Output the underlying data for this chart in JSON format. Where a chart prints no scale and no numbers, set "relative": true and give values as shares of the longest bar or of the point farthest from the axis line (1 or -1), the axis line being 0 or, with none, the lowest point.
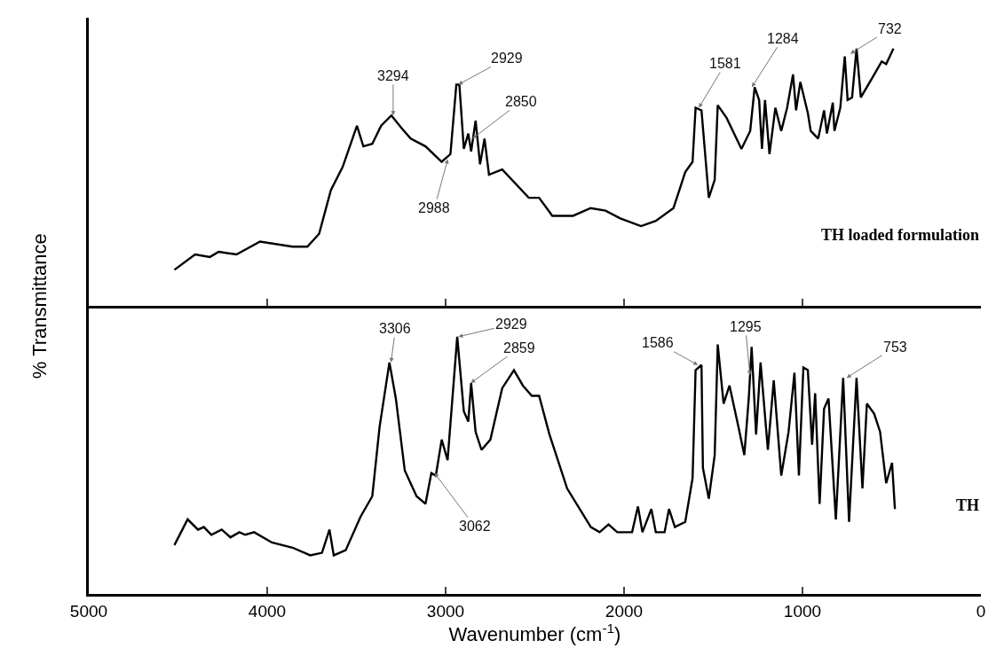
{
  "chart_data": [
    {
      "type": "line",
      "relative": true,
      "xlim": [
        5000,
        0
      ],
      "xticks": [
        5000,
        4000,
        3000,
        2000,
        1000,
        0
      ],
      "tick_labels": false,
      "ylabel": "% Transmittance",
      "series": [
        {
          "name": "TH loaded formulation",
          "color": "#000000",
          "x": [
            4520,
            4404,
            4321,
            4272,
            4172,
            4040,
            3858,
            3775,
            3709,
            3643,
            3577,
            3497,
            3461,
            3411,
            3362,
            3304,
            3246,
            3196,
            3113,
            3022,
            2973,
            2940,
            2923,
            2898,
            2873,
            2857,
            2832,
            2807,
            2782,
            2757,
            2683,
            2534,
            2476,
            2402,
            2286,
            2187,
            2104,
            2021,
            1905,
            1822,
            1723,
            1657,
            1616,
            1599,
            1566,
            1525,
            1492,
            1475,
            1425,
            1342,
            1293,
            1268,
            1243,
            1227,
            1210,
            1185,
            1152,
            1119,
            1086,
            1053,
            1036,
            1012,
            970,
            954,
            912,
            879,
            863,
            830,
            821,
            788,
            763,
            747,
            722,
            697,
            673,
            614,
            556,
            531,
            490
          ],
          "values": [
            0.14,
            0.2,
            0.19,
            0.21,
            0.2,
            0.25,
            0.23,
            0.23,
            0.28,
            0.45,
            0.54,
            0.7,
            0.62,
            0.63,
            0.7,
            0.74,
            0.69,
            0.65,
            0.62,
            0.56,
            0.59,
            0.86,
            0.86,
            0.61,
            0.67,
            0.6,
            0.72,
            0.55,
            0.65,
            0.51,
            0.53,
            0.42,
            0.42,
            0.35,
            0.35,
            0.38,
            0.37,
            0.34,
            0.31,
            0.33,
            0.38,
            0.52,
            0.56,
            0.77,
            0.76,
            0.42,
            0.49,
            0.78,
            0.73,
            0.61,
            0.68,
            0.85,
            0.8,
            0.61,
            0.8,
            0.59,
            0.77,
            0.68,
            0.77,
            0.9,
            0.76,
            0.87,
            0.75,
            0.68,
            0.65,
            0.76,
            0.67,
            0.79,
            0.68,
            0.77,
            0.97,
            0.8,
            0.81,
            1.0,
            0.81,
            0.88,
            0.95,
            0.94,
            1.0
          ]
        }
      ],
      "annotations": [
        {
          "text": "3294",
          "x": 3294,
          "y": 0.74
        },
        {
          "text": "2929",
          "x": 2929,
          "y": 0.86
        },
        {
          "text": "2850",
          "x": 2850,
          "y": 0.65
        },
        {
          "text": "2988",
          "x": 2988,
          "y": 0.57
        },
        {
          "text": "1581",
          "x": 1581,
          "y": 0.77
        },
        {
          "text": "1284",
          "x": 1284,
          "y": 0.85
        },
        {
          "text": "732",
          "x": 732,
          "y": 0.98
        }
      ]
    },
    {
      "type": "line",
      "relative": true,
      "xlim": [
        5000,
        0
      ],
      "xticks": [
        5000,
        4000,
        3000,
        2000,
        1000,
        0
      ],
      "tick_labels": "x",
      "xlabel": "Wavenumber (cm$^{-1}$)",
      "series": [
        {
          "name": "TH",
          "color": "#000000",
          "x": [
            4520,
            4446,
            4388,
            4355,
            4313,
            4255,
            4206,
            4156,
            4123,
            4073,
            3974,
            3858,
            3759,
            3693,
            3651,
            3627,
            3560,
            3477,
            3411,
            3370,
            3315,
            3279,
            3229,
            3163,
            3113,
            3080,
            3055,
            3022,
            2989,
            2935,
            2898,
            2873,
            2857,
            2832,
            2799,
            2749,
            2683,
            2617,
            2567,
            2517,
            2476,
            2418,
            2319,
            2186,
            2137,
            2087,
            2038,
            1955,
            1922,
            1897,
            1847,
            1822,
            1773,
            1748,
            1715,
            1657,
            1616,
            1599,
            1566,
            1558,
            1525,
            1492,
            1475,
            1442,
            1409,
            1359,
            1326,
            1301,
            1285,
            1260,
            1235,
            1194,
            1161,
            1119,
            1078,
            1045,
            1020,
            995,
            970,
            946,
            929,
            904,
            879,
            854,
            813,
            772,
            739,
            697,
            664,
            639,
            598,
            565,
            531,
            498,
            482
          ],
          "values": [
            0.19,
            0.29,
            0.25,
            0.26,
            0.23,
            0.25,
            0.22,
            0.24,
            0.23,
            0.24,
            0.2,
            0.18,
            0.15,
            0.16,
            0.25,
            0.15,
            0.17,
            0.3,
            0.38,
            0.65,
            0.9,
            0.76,
            0.48,
            0.38,
            0.35,
            0.47,
            0.46,
            0.6,
            0.52,
            1.0,
            0.71,
            0.67,
            0.82,
            0.63,
            0.56,
            0.6,
            0.8,
            0.87,
            0.81,
            0.77,
            0.77,
            0.62,
            0.41,
            0.26,
            0.24,
            0.27,
            0.24,
            0.24,
            0.34,
            0.24,
            0.33,
            0.24,
            0.24,
            0.33,
            0.26,
            0.28,
            0.45,
            0.87,
            0.89,
            0.49,
            0.37,
            0.54,
            0.97,
            0.74,
            0.81,
            0.65,
            0.54,
            0.76,
            0.96,
            0.62,
            0.9,
            0.56,
            0.83,
            0.46,
            0.63,
            0.86,
            0.46,
            0.88,
            0.87,
            0.58,
            0.78,
            0.35,
            0.72,
            0.76,
            0.29,
            0.84,
            0.28,
            0.84,
            0.41,
            0.74,
            0.7,
            0.63,
            0.43,
            0.51,
            0.33
          ]
        }
      ],
      "annotations": [
        {
          "text": "3306",
          "x": 3306,
          "y": 0.9
        },
        {
          "text": "2929",
          "x": 2929,
          "y": 1.0
        },
        {
          "text": "2859",
          "x": 2859,
          "y": 0.82
        },
        {
          "text": "3062",
          "x": 3062,
          "y": 0.47
        },
        {
          "text": "1586",
          "x": 1586,
          "y": 0.89
        },
        {
          "text": "1295",
          "x": 1295,
          "y": 0.85
        },
        {
          "text": "753",
          "x": 753,
          "y": 0.84
        }
      ]
    }
  ]
}
